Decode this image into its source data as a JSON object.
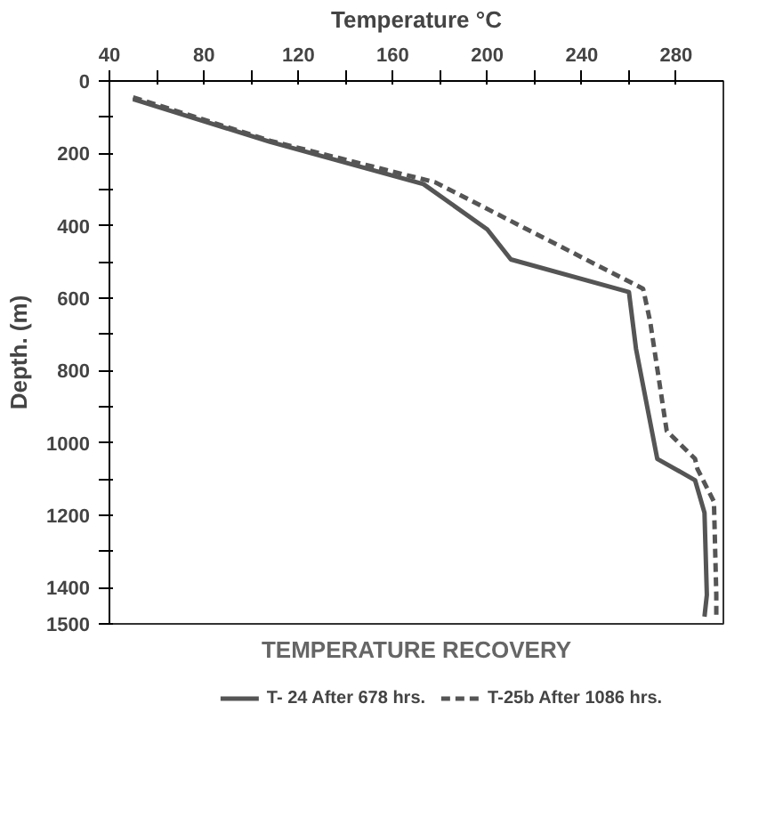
{
  "chart_data": {
    "type": "line",
    "title": "TEMPERATURE RECOVERY",
    "xlabel": "Temperature °C",
    "ylabel": "Depth. (m)",
    "xlim": [
      40,
      300
    ],
    "ylim": [
      1500,
      0
    ],
    "xticks": [
      40,
      {
        "value": 60,
        "label": null
      },
      80,
      {
        "value": 100,
        "label": null
      },
      120,
      {
        "value": 140,
        "label": null
      },
      160,
      {
        "value": 180,
        "label": null
      },
      200,
      {
        "value": 220,
        "label": null
      },
      240,
      {
        "value": 260,
        "label": null
      },
      280
    ],
    "yticks": [
      0,
      {
        "value": 100,
        "label": null
      },
      200,
      {
        "value": 300,
        "label": null
      },
      400,
      {
        "value": 500,
        "label": null
      },
      600,
      {
        "value": 700,
        "label": null
      },
      800,
      {
        "value": 900,
        "label": null
      },
      1000,
      {
        "value": 1100,
        "label": null
      },
      1200,
      {
        "value": 1300,
        "label": null
      },
      1400,
      1500
    ],
    "grid": false,
    "legend": "bottom",
    "marker": "none",
    "series": [
      {
        "name": "T- 24 After 678 hrs.",
        "color": "#555555",
        "line_style": "solid",
        "x": [
          50,
          108,
          173,
          200,
          210,
          260,
          263,
          272,
          288,
          292,
          293,
          292
        ],
        "values": [
          50,
          168,
          285,
          410,
          493,
          583,
          740,
          1044,
          1103,
          1193,
          1420,
          1480
        ]
      },
      {
        "name": "T-25b After 1086 hrs.",
        "color": "#555555",
        "line_style": "dashed",
        "x": [
          50,
          108,
          178,
          266,
          269,
          276,
          288,
          289,
          296,
          297,
          297
        ],
        "values": [
          45,
          165,
          280,
          574,
          665,
          967,
          1044,
          1072,
          1162,
          1420,
          1480
        ]
      }
    ]
  }
}
